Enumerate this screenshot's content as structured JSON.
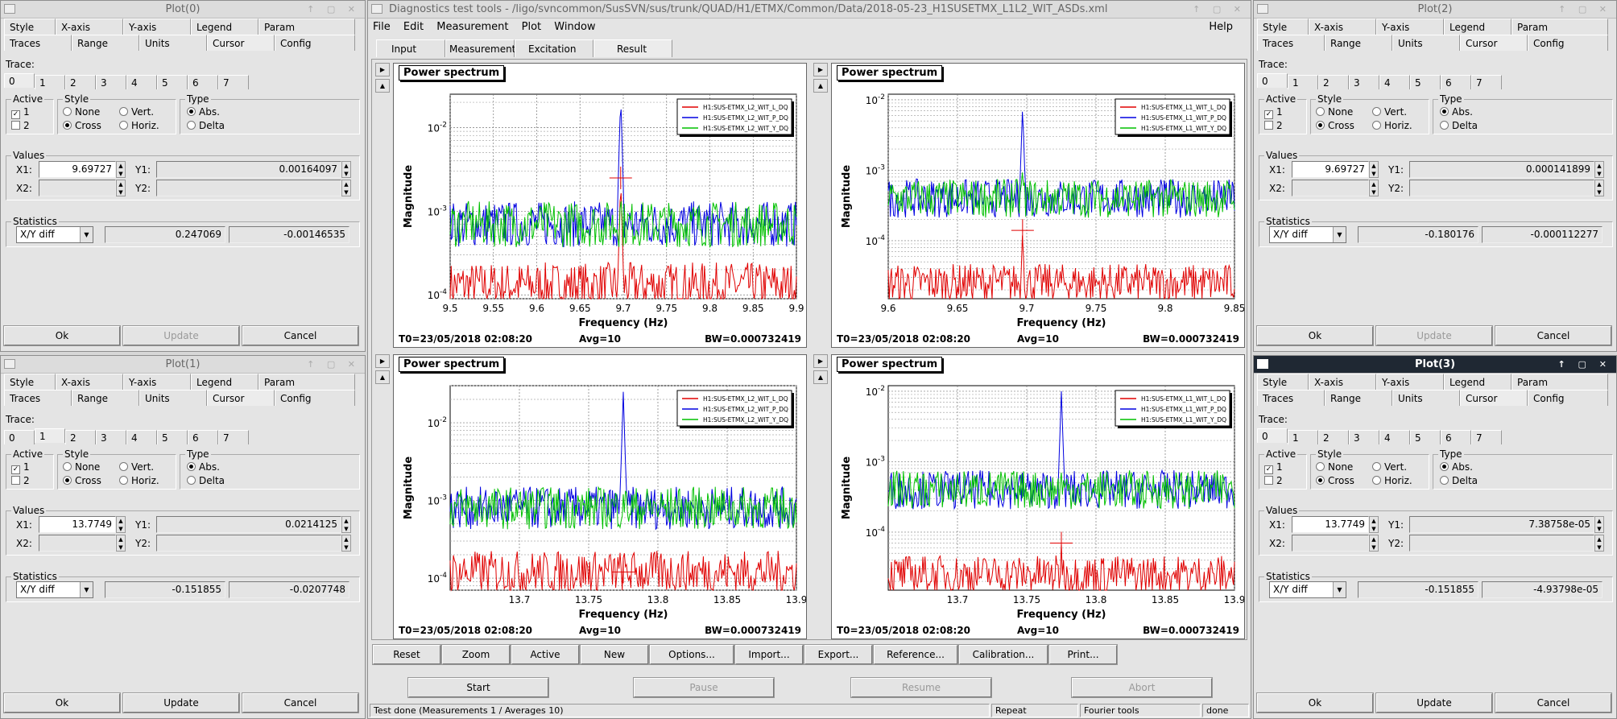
{
  "main": {
    "title": "Diagnostics test tools - /ligo/svncommon/SusSVN/sus/trunk/QUAD/H1/ETMX/Common/Data/2018-05-23_H1SUSETMX_L1L2_WIT_ASDs.xml",
    "menu": [
      "File",
      "Edit",
      "Measurement",
      "Plot",
      "Window"
    ],
    "help": "Help",
    "tabs": [
      "Input",
      "Measurement",
      "Excitation",
      "Result"
    ],
    "toolbar": [
      "Reset",
      "Zoom",
      "Active",
      "New",
      "Options...",
      "Import...",
      "Export...",
      "Reference...",
      "Calibration...",
      "Print..."
    ],
    "controls": {
      "start": "Start",
      "pause": "Pause",
      "resume": "Resume",
      "abort": "Abort"
    },
    "status": {
      "message": "Test done (Measurements 1 / Averages 10)",
      "repeat": "Repeat",
      "fourier": "Fourier tools",
      "state": "done"
    }
  },
  "plot_common": {
    "title": "Power spectrum",
    "ylabel": "Magnitude",
    "xlabel": "Frequency (Hz)",
    "t0": "T0=23/05/2018 02:08:20",
    "avg": "Avg=10",
    "bw": "BW=0.000732419"
  },
  "chart_data": [
    {
      "type": "line",
      "x_range": [
        9.5,
        9.9
      ],
      "y_range_log": [
        9e-05,
        0.025
      ],
      "x_ticks": [
        "9.5",
        "9.55",
        "9.6",
        "9.65",
        "9.7",
        "9.75",
        "9.8",
        "9.85",
        "9.9"
      ],
      "y_ticks": [
        "10^-4",
        "10^-3",
        "10^-2"
      ],
      "peak_x": 9.697,
      "series": [
        {
          "name": "H1:SUS-ETMX_L2_WIT_L_DQ",
          "color": "#e00000",
          "baseline": 0.00013,
          "peak": 0.0025
        },
        {
          "name": "H1:SUS-ETMX_L2_WIT_P_DQ",
          "color": "#0000e0",
          "baseline": 0.0007,
          "peak": 0.025
        },
        {
          "name": "H1:SUS-ETMX_L2_WIT_Y_DQ",
          "color": "#00c000",
          "baseline": 0.0007,
          "peak": 0.002
        }
      ]
    },
    {
      "type": "line",
      "x_range": [
        9.6,
        9.85
      ],
      "y_range_log": [
        1.5e-05,
        0.012
      ],
      "x_ticks": [
        "9.6",
        "9.65",
        "9.7",
        "9.75",
        "9.8",
        "9.85"
      ],
      "y_ticks": [
        "10^-4",
        "10^-3",
        "10^-2"
      ],
      "peak_x": 9.697,
      "series": [
        {
          "name": "H1:SUS-ETMX_L1_WIT_L_DQ",
          "color": "#e00000",
          "baseline": 2.5e-05,
          "peak": 0.00014
        },
        {
          "name": "H1:SUS-ETMX_L1_WIT_P_DQ",
          "color": "#0000e0",
          "baseline": 0.0004,
          "peak": 0.008
        },
        {
          "name": "H1:SUS-ETMX_L1_WIT_Y_DQ",
          "color": "#00c000",
          "baseline": 0.0004,
          "peak": 0.0011
        }
      ]
    },
    {
      "type": "line",
      "x_range": [
        13.65,
        13.9
      ],
      "y_range_log": [
        7e-05,
        0.03
      ],
      "x_ticks": [
        "13.7",
        "13.75",
        "13.8",
        "13.85",
        "13.9"
      ],
      "y_ticks": [
        "10^-4",
        "10^-3",
        "10^-2"
      ],
      "peak_x": 13.775,
      "series": [
        {
          "name": "H1:SUS-ETMX_L2_WIT_L_DQ",
          "color": "#e00000",
          "baseline": 0.00012,
          "peak": 0.00012
        },
        {
          "name": "H1:SUS-ETMX_L2_WIT_P_DQ",
          "color": "#0000e0",
          "baseline": 0.0008,
          "peak": 0.025
        },
        {
          "name": "H1:SUS-ETMX_L2_WIT_Y_DQ",
          "color": "#00c000",
          "baseline": 0.0008,
          "peak": 0.0012
        }
      ]
    },
    {
      "type": "line",
      "x_range": [
        13.65,
        13.9
      ],
      "y_range_log": [
        1.5e-05,
        0.012
      ],
      "x_ticks": [
        "13.7",
        "13.75",
        "13.8",
        "13.85",
        "13.9"
      ],
      "y_ticks": [
        "10^-4",
        "10^-3",
        "10^-2"
      ],
      "peak_x": 13.775,
      "series": [
        {
          "name": "H1:SUS-ETMX_L1_WIT_L_DQ",
          "color": "#e00000",
          "baseline": 2.5e-05,
          "peak": 7e-05
        },
        {
          "name": "H1:SUS-ETMX_L1_WIT_P_DQ",
          "color": "#0000e0",
          "baseline": 0.0004,
          "peak": 0.01
        },
        {
          "name": "H1:SUS-ETMX_L1_WIT_Y_DQ",
          "color": "#00c000",
          "baseline": 0.0004,
          "peak": 0.0007
        }
      ]
    }
  ],
  "plot_windows": [
    {
      "title": "Plot(0)",
      "active": false,
      "active_trace": "0",
      "x1": "9.69727",
      "y1": "0.00164097",
      "stat1": "0.247069",
      "stat2": "-0.00146535",
      "buttons": {
        "ok": "Ok",
        "update": "Update",
        "cancel": "Cancel"
      },
      "update_disabled": true
    },
    {
      "title": "Plot(1)",
      "active": false,
      "active_trace": "1",
      "x1": "13.7749",
      "y1": "0.0214125",
      "stat1": "-0.151855",
      "stat2": "-0.0207748",
      "buttons": {
        "ok": "Ok",
        "update": "Update",
        "cancel": "Cancel"
      },
      "update_disabled": false
    },
    {
      "title": "Plot(2)",
      "active": false,
      "active_trace": "0",
      "x1": "9.69727",
      "y1": "0.000141899",
      "stat1": "-0.180176",
      "stat2": "-0.000112277",
      "buttons": {
        "ok": "Ok",
        "update": "Update",
        "cancel": "Cancel"
      },
      "update_disabled": true
    },
    {
      "title": "Plot(3)",
      "active": true,
      "active_trace": "0",
      "x1": "13.7749",
      "y1": "7.38758e-05",
      "stat1": "-0.151855",
      "stat2": "-4.93798e-05",
      "buttons": {
        "ok": "Ok",
        "update": "Update",
        "cancel": "Cancel"
      },
      "update_disabled": false
    }
  ],
  "panel_labels": {
    "tabs_row1": [
      "Style",
      "X-axis",
      "Y-axis",
      "Legend",
      "Param"
    ],
    "tabs_row2": [
      "Traces",
      "Range",
      "Units",
      "Cursor",
      "Config"
    ],
    "trace": "Trace:",
    "trace_tabs": [
      "0",
      "1",
      "2",
      "3",
      "4",
      "5",
      "6",
      "7"
    ],
    "active": "Active",
    "active_1": "1",
    "active_2": "2",
    "style": "Style",
    "style_none": "None",
    "style_vert": "Vert.",
    "style_cross": "Cross",
    "style_horiz": "Horiz.",
    "type": "Type",
    "type_abs": "Abs.",
    "type_delta": "Delta",
    "values": "Values",
    "x1": "X1:",
    "y1": "Y1:",
    "x2": "X2:",
    "y2": "Y2:",
    "statistics": "Statistics",
    "stat_mode": "X/Y diff"
  },
  "icons": {
    "window": "window-icon",
    "check": "✓",
    "up": "▲",
    "down": "▼",
    "left": "◀",
    "right": "▶"
  }
}
